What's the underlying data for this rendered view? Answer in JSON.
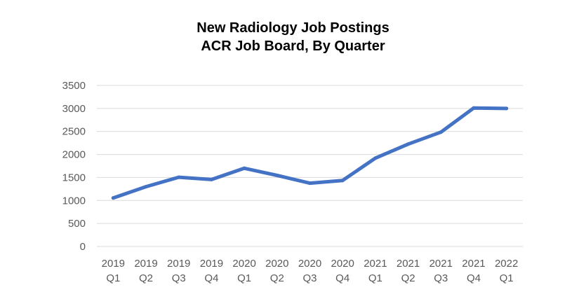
{
  "chart_data": {
    "type": "line",
    "title": "New Radiology Job Postings",
    "subtitle": "ACR Job Board, By Quarter",
    "xlabel": "",
    "ylabel": "",
    "categories": [
      [
        "2019",
        "Q1"
      ],
      [
        "2019",
        "Q2"
      ],
      [
        "2019",
        "Q3"
      ],
      [
        "2019",
        "Q4"
      ],
      [
        "2020",
        "Q1"
      ],
      [
        "2020",
        "Q2"
      ],
      [
        "2020",
        "Q3"
      ],
      [
        "2020",
        "Q4"
      ],
      [
        "2021",
        "Q1"
      ],
      [
        "2021",
        "Q2"
      ],
      [
        "2021",
        "Q3"
      ],
      [
        "2021",
        "Q4"
      ],
      [
        "2022",
        "Q1"
      ]
    ],
    "values": [
      1055,
      1300,
      1505,
      1455,
      1700,
      1545,
      1375,
      1435,
      1920,
      2225,
      2485,
      3010,
      3000
    ],
    "ylim": [
      0,
      3500
    ],
    "yticks": [
      0,
      500,
      1000,
      1500,
      2000,
      2500,
      3000,
      3500
    ],
    "grid": true,
    "legend": "none",
    "line_color": "#4472C4",
    "grid_color": "#D9D9D9"
  }
}
